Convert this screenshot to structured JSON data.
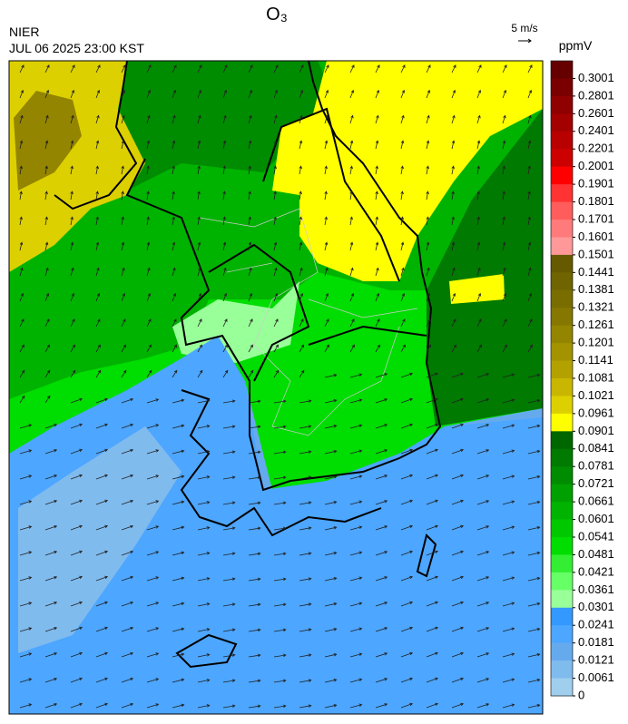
{
  "header": {
    "title": "O₃",
    "agency": "NIER",
    "timestamp": "JUL 06 2025 23:00 KST",
    "wind_scale": "5 m/s"
  },
  "colorbar": {
    "unit": "ppmV",
    "ticks": [
      0.3001,
      0.2801,
      0.2601,
      0.2401,
      0.2201,
      0.2001,
      0.1901,
      0.1801,
      0.1701,
      0.1601,
      0.1501,
      0.1441,
      0.1381,
      0.1321,
      0.1261,
      0.1201,
      0.1141,
      0.1081,
      0.1021,
      0.0961,
      0.0901,
      0.0841,
      0.0781,
      0.0721,
      0.0661,
      0.0601,
      0.0541,
      0.0481,
      0.0421,
      0.0361,
      0.0301,
      0.0241,
      0.0181,
      0.0121,
      0.0061,
      0
    ],
    "colors": [
      "#660000",
      "#7a0000",
      "#8f0000",
      "#a30000",
      "#b80000",
      "#cc0000",
      "#ff0000",
      "#ff3333",
      "#ff5c5c",
      "#ff7a7a",
      "#ff9999",
      "#665a00",
      "#706400",
      "#7a6d00",
      "#857700",
      "#948500",
      "#a39300",
      "#b3a100",
      "#c9b600",
      "#ddd000",
      "#ffff00",
      "#006600",
      "#007a00",
      "#008c00",
      "#00a000",
      "#00b300",
      "#00c800",
      "#00dd00",
      "#33ee33",
      "#66ff66",
      "#99ff99",
      "#3399ff",
      "#4da6ff",
      "#66aaee",
      "#80bbee",
      "#a0cfee"
    ]
  }
}
